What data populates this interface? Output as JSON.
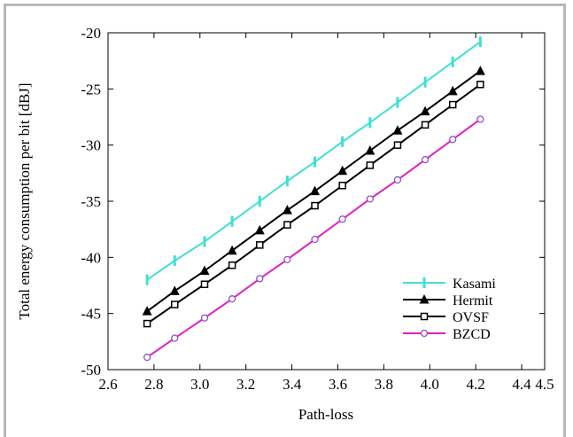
{
  "chart_data": {
    "type": "line",
    "title": "",
    "xlabel": "Path-loss",
    "ylabel": "Total energy consumption per bit [dBJ]",
    "xlim": [
      2.6,
      4.5
    ],
    "ylim": [
      -50,
      -20
    ],
    "xticks": [
      "2.6",
      "2.8",
      "3.0",
      "3.2",
      "3.4",
      "3.6",
      "3.8",
      "4.0",
      "4.2",
      "4.4",
      "4.5"
    ],
    "xtick_values": [
      2.6,
      2.8,
      3.0,
      3.2,
      3.4,
      3.6,
      3.8,
      4.0,
      4.2,
      4.4,
      4.5
    ],
    "yticks": [
      "-20",
      "-25",
      "-30",
      "-35",
      "-40",
      "-45",
      "-50"
    ],
    "ytick_values": [
      -20,
      -25,
      -30,
      -35,
      -40,
      -45,
      -50
    ],
    "grid": false,
    "legend_position": "lower-right",
    "x": [
      2.77,
      2.89,
      3.02,
      3.14,
      3.26,
      3.38,
      3.5,
      3.62,
      3.74,
      3.86,
      3.98,
      4.1,
      4.22
    ],
    "series": [
      {
        "name": "Kasami",
        "color": "#40e0d0",
        "marker": "vbar",
        "values": [
          -42.0,
          -40.3,
          -38.6,
          -36.8,
          -35.0,
          -33.2,
          -31.5,
          -29.7,
          -28.0,
          -26.2,
          -24.4,
          -22.6,
          -20.8
        ]
      },
      {
        "name": "Hermit",
        "color": "#000000",
        "marker": "triangle",
        "values": [
          -44.8,
          -43.0,
          -41.2,
          -39.4,
          -37.6,
          -35.8,
          -34.1,
          -32.3,
          -30.5,
          -28.7,
          -27.0,
          -25.2,
          -23.4
        ]
      },
      {
        "name": "OVSF",
        "color": "#000000",
        "marker": "square",
        "values": [
          -45.9,
          -44.2,
          -42.4,
          -40.7,
          -38.9,
          -37.1,
          -35.4,
          -33.6,
          -31.8,
          -30.0,
          -28.2,
          -26.4,
          -24.6
        ]
      },
      {
        "name": "BZCD",
        "color": "#e020c0",
        "marker": "circle",
        "marker_color": "#9050c8",
        "values": [
          -48.9,
          -47.2,
          -45.4,
          -43.7,
          -41.9,
          -40.2,
          -38.4,
          -36.6,
          -34.8,
          -33.1,
          -31.3,
          -29.5,
          -27.7
        ]
      }
    ]
  }
}
